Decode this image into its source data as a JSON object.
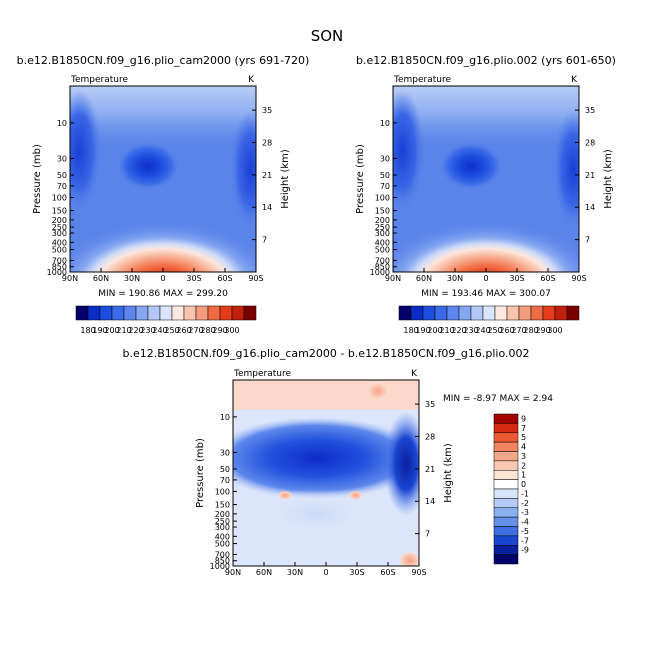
{
  "page_title": "SON",
  "chart_data": [
    {
      "type": "contour",
      "title": "b.e12.B1850CN.f09_g16.plio_cam2000 (yrs 691-720)",
      "variable": "Temperature",
      "units": "K",
      "ylabel": "Pressure (mb)",
      "ylabel_right": "Height (km)",
      "xticks": [
        "90N",
        "60N",
        "30N",
        "0",
        "30S",
        "60S",
        "90S"
      ],
      "yticks": [
        "10",
        "30",
        "50",
        "70",
        "100",
        "150",
        "200",
        "250",
        "300",
        "400",
        "500",
        "700",
        "850",
        "1000"
      ],
      "yticks_right": [
        "35",
        "28",
        "21",
        "14",
        "7"
      ],
      "stats": "MIN = 190.86   MAX = 299.20",
      "colorbar_labels": [
        "180",
        "190",
        "200",
        "210",
        "220",
        "230",
        "240",
        "250",
        "260",
        "270",
        "280",
        "290",
        "300"
      ],
      "colorbar_colors": [
        "#03006b",
        "#0b2cc4",
        "#1c4fe0",
        "#3a6ae8",
        "#5d87ee",
        "#86a6f2",
        "#b4c8f7",
        "#dbe5fb",
        "#fce8df",
        "#f8c4ad",
        "#f59c7d",
        "#ef6a46",
        "#e33d1c",
        "#c0200c",
        "#7a0000"
      ]
    },
    {
      "type": "contour",
      "title": "b.e12.B1850CN.f09_g16.plio.002 (yrs 601-650)",
      "variable": "Temperature",
      "units": "K",
      "ylabel": "Pressure (mb)",
      "ylabel_right": "Height (km)",
      "xticks": [
        "90N",
        "60N",
        "30N",
        "0",
        "30S",
        "60S",
        "90S"
      ],
      "yticks": [
        "10",
        "30",
        "50",
        "70",
        "100",
        "150",
        "200",
        "250",
        "300",
        "400",
        "500",
        "700",
        "850",
        "1000"
      ],
      "yticks_right": [
        "35",
        "28",
        "21",
        "14",
        "7"
      ],
      "stats": "MIN = 193.46   MAX = 300.07",
      "colorbar_labels": [
        "180",
        "190",
        "200",
        "210",
        "220",
        "230",
        "240",
        "250",
        "260",
        "270",
        "280",
        "290",
        "300"
      ],
      "colorbar_colors": [
        "#03006b",
        "#0b2cc4",
        "#1c4fe0",
        "#3a6ae8",
        "#5d87ee",
        "#86a6f2",
        "#b4c8f7",
        "#dbe5fb",
        "#fce8df",
        "#f8c4ad",
        "#f59c7d",
        "#ef6a46",
        "#e33d1c",
        "#c0200c",
        "#7a0000"
      ]
    },
    {
      "type": "contour",
      "title": "b.e12.B1850CN.f09_g16.plio_cam2000 - b.e12.B1850CN.f09_g16.plio.002",
      "variable": "Temperature",
      "units": "K",
      "ylabel": "Pressure (mb)",
      "ylabel_right": "Height (km)",
      "xticks": [
        "90N",
        "60N",
        "30N",
        "0",
        "30S",
        "60S",
        "90S"
      ],
      "yticks": [
        "10",
        "30",
        "50",
        "70",
        "100",
        "150",
        "200",
        "250",
        "300",
        "400",
        "500",
        "700",
        "850",
        "1000"
      ],
      "yticks_right": [
        "35",
        "28",
        "21",
        "14",
        "7"
      ],
      "stats": "MIN = -8.97   MAX =   2.94",
      "colorbar_labels": [
        "9",
        "7",
        "5",
        "4",
        "3",
        "2",
        "1",
        "0",
        "-1",
        "-2",
        "-3",
        "-4",
        "-5",
        "-7",
        "-9"
      ],
      "colorbar_colors": [
        "#a30000",
        "#d42a10",
        "#ec5a34",
        "#f28560",
        "#f6a98a",
        "#f9c8b0",
        "#fde4d6",
        "#ffffff",
        "#d6e4fa",
        "#b3cbf6",
        "#8ab0f0",
        "#6590e8",
        "#3f6ee0",
        "#1a45d0",
        "#0a1f9e",
        "#03006b"
      ]
    }
  ]
}
